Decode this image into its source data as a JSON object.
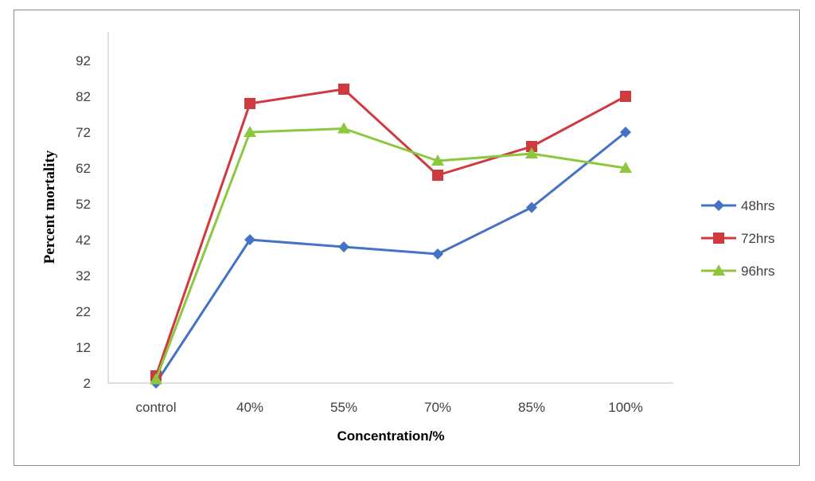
{
  "chart_data": {
    "type": "line",
    "title": "",
    "xlabel": "Concentration/%",
    "ylabel": "Percent mortality",
    "categories": [
      "control",
      "40%",
      "55%",
      "70%",
      "85%",
      "100%"
    ],
    "yticks": [
      2,
      12,
      22,
      32,
      42,
      52,
      62,
      72,
      82,
      92
    ],
    "ylim": [
      2,
      100
    ],
    "grid": false,
    "legend_position": "right",
    "series": [
      {
        "name": "48hrs",
        "values": [
          2,
          42,
          40,
          38,
          51,
          72
        ],
        "color": "#4472c4",
        "marker": "diamond"
      },
      {
        "name": "72hrs",
        "values": [
          4,
          80,
          84,
          60,
          68,
          82
        ],
        "color": "#d03a3e",
        "marker": "square"
      },
      {
        "name": "96hrs",
        "values": [
          3,
          72,
          73,
          64,
          66,
          62
        ],
        "color": "#8dc63f",
        "marker": "triangle"
      }
    ]
  }
}
